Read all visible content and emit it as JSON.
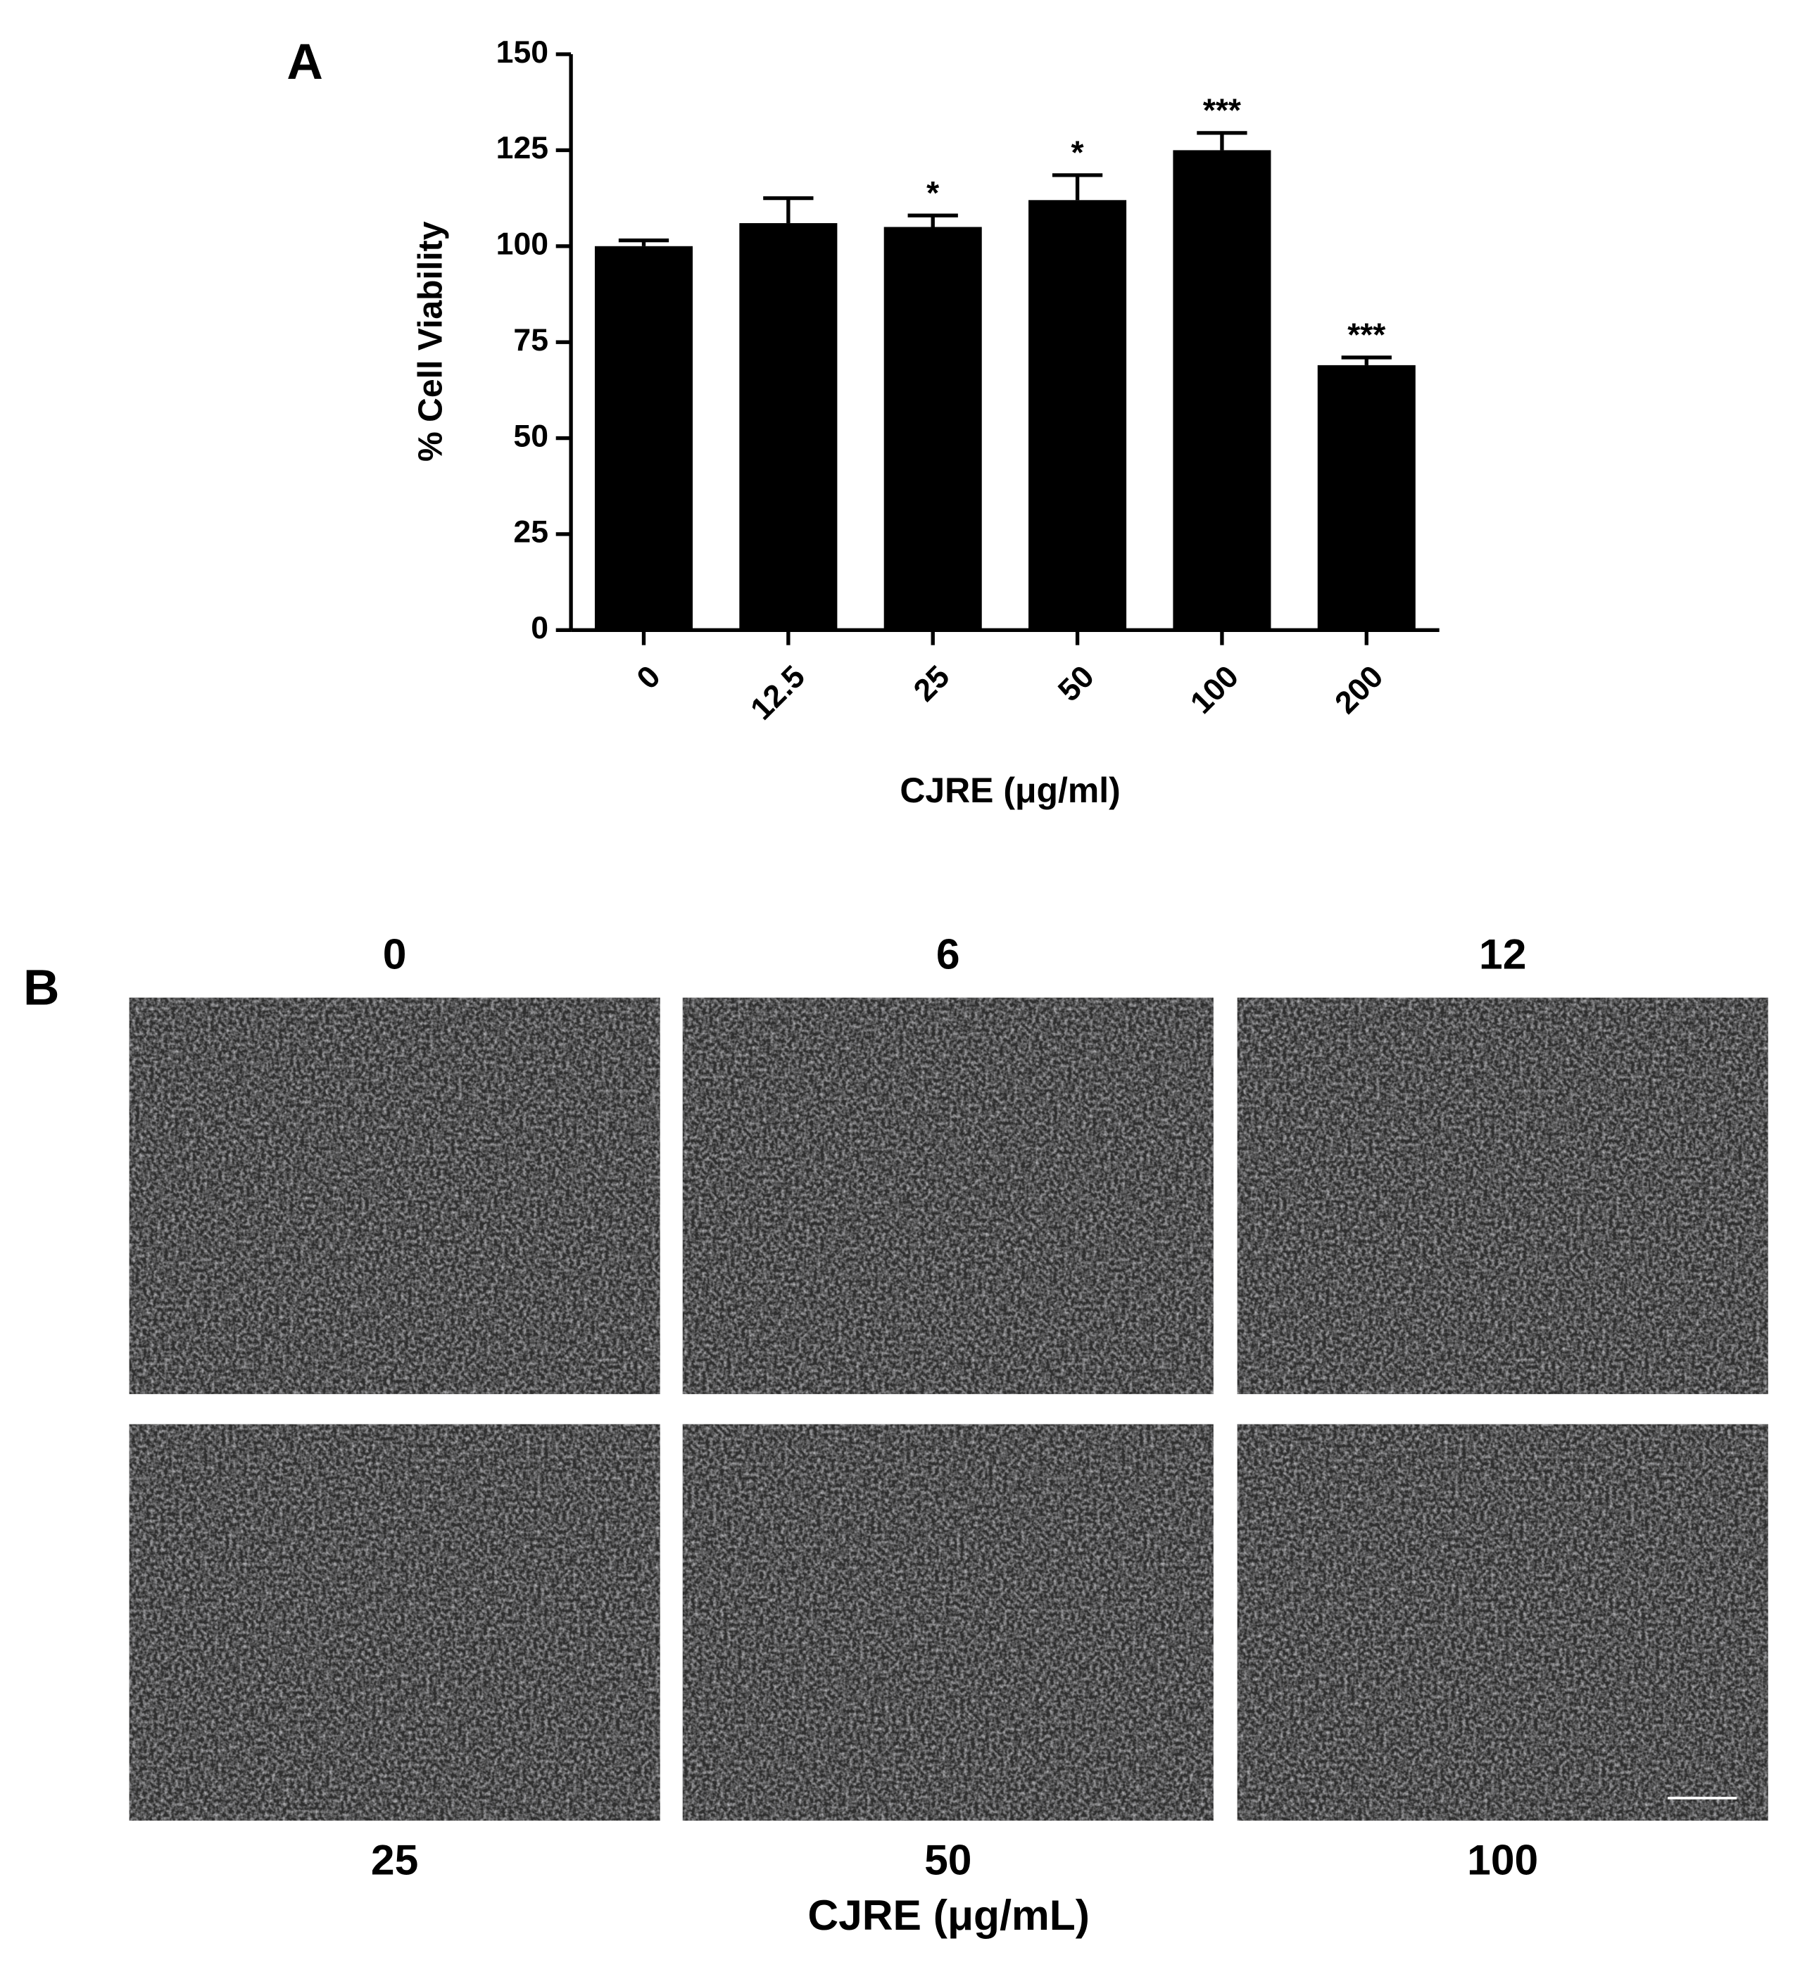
{
  "chart_data": {
    "type": "bar",
    "panel_label": "A",
    "xlabel": "CJRE (μg/ml)",
    "ylabel": "% Cell Viability",
    "categories": [
      "0",
      "12.5",
      "25",
      "50",
      "100",
      "200"
    ],
    "values": [
      100,
      106,
      105,
      112,
      125,
      69
    ],
    "errors": [
      1.5,
      6.5,
      3,
      6.5,
      4.5,
      2
    ],
    "annotations": [
      null,
      null,
      "*",
      "*",
      "***",
      "***"
    ],
    "color": "#000000",
    "ylim": [
      0,
      150
    ],
    "yticks": [
      0,
      25,
      50,
      75,
      100,
      125,
      150
    ]
  },
  "panel_b": {
    "panel_label": "B",
    "axis_label": "CJRE (μg/mL)",
    "images": [
      {
        "label": "0"
      },
      {
        "label": "6"
      },
      {
        "label": "12"
      },
      {
        "label": "25"
      },
      {
        "label": "50"
      },
      {
        "label": "100"
      }
    ]
  }
}
